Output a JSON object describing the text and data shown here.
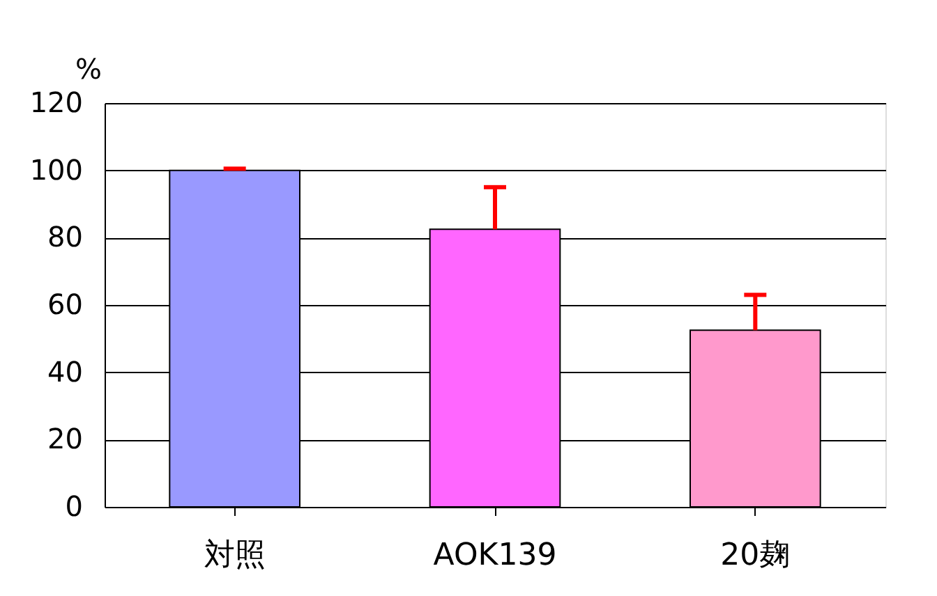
{
  "chart_data": {
    "type": "bar",
    "ylabel": "%",
    "categories": [
      "対照",
      "AOK139",
      "20麹"
    ],
    "values": [
      100,
      82.5,
      52.5
    ],
    "colors": [
      "#9999ff",
      "#ff66ff",
      "#ff99cc"
    ],
    "errors": [
      [
        100,
        100.5
      ],
      [
        82.5,
        95
      ],
      [
        52.5,
        63
      ]
    ],
    "ylim": [
      0,
      120
    ],
    "yticks": [
      0,
      20,
      40,
      60,
      80,
      100,
      120
    ],
    "grid": "y"
  }
}
